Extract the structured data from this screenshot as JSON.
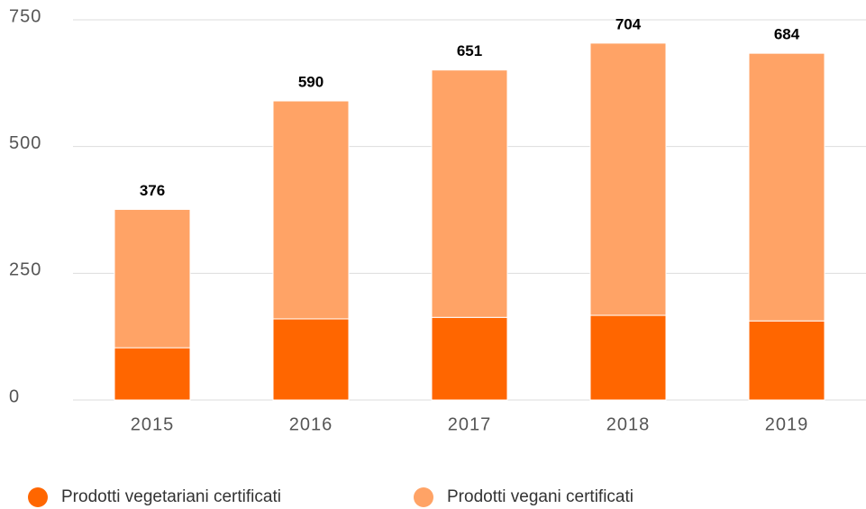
{
  "chart_data": {
    "type": "stacked_bar",
    "categories": [
      "2015",
      "2016",
      "2017",
      "2018",
      "2019"
    ],
    "series": [
      {
        "name": "Prodotti vegetariani certificati",
        "color": "#ff6600",
        "values": [
          103,
          160,
          163,
          167,
          156
        ]
      },
      {
        "name": "Prodotti vegani certificati",
        "color": "#ffa366",
        "values": [
          273,
          430,
          488,
          537,
          528
        ]
      }
    ],
    "totals": [
      376,
      590,
      651,
      704,
      684
    ],
    "ylim": [
      0,
      750
    ],
    "yticks": [
      0,
      250,
      500,
      750
    ],
    "grid": true
  }
}
